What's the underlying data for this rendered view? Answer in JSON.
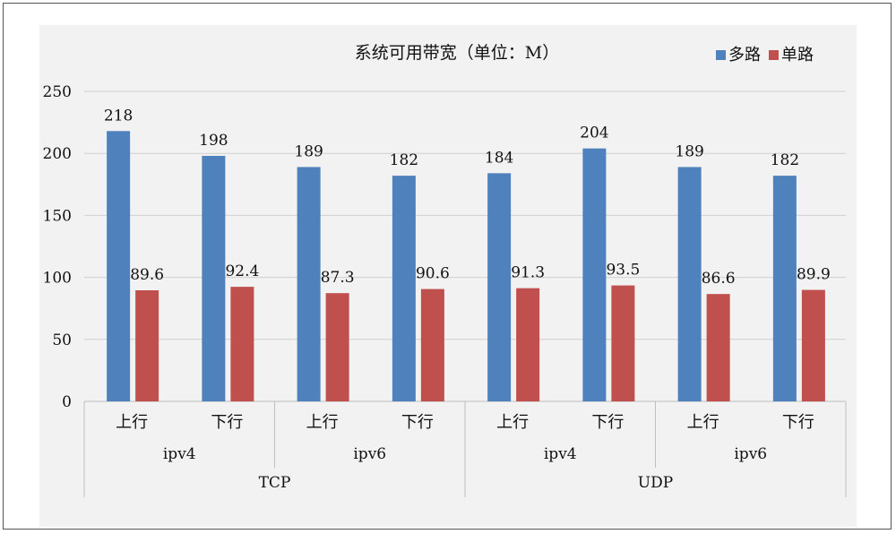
{
  "chart_data": {
    "type": "bar",
    "title": "系统可用带宽（单位：M）",
    "ylim": [
      0,
      250
    ],
    "yticks": [
      "0",
      "50",
      "100",
      "150",
      "200",
      "250"
    ],
    "grid": true,
    "legend_position": "top-right",
    "categories": [
      "上行",
      "下行",
      "上行",
      "下行",
      "上行",
      "下行",
      "上行",
      "下行"
    ],
    "groups_level2": [
      "ipv4",
      "ipv6",
      "ipv4",
      "ipv6"
    ],
    "groups_level1": [
      "TCP",
      "UDP"
    ],
    "series": [
      {
        "name": "多路",
        "color": "#4F81BD",
        "values": [
          218,
          198,
          189,
          182,
          184,
          204,
          189,
          182
        ]
      },
      {
        "name": "单路",
        "color": "#C0504D",
        "values": [
          89.6,
          92.4,
          87.3,
          90.6,
          91.3,
          93.5,
          86.6,
          89.9
        ]
      }
    ]
  }
}
